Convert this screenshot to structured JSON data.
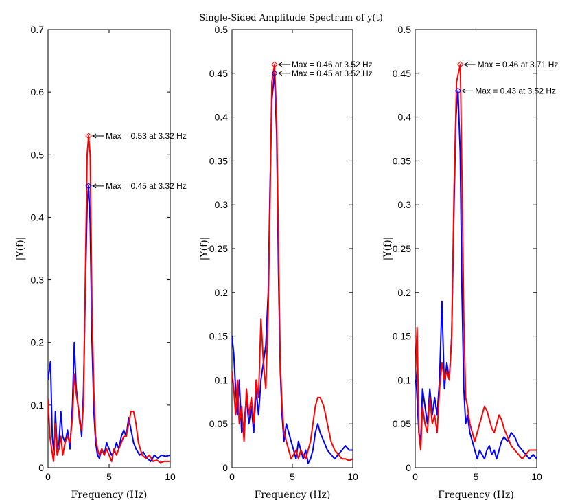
{
  "figure_title": "Single-Sided Amplitude Spectrum of y(t)",
  "chart_data": [
    {
      "type": "line",
      "xlabel": "Frequency (Hz)",
      "ylabel": "|Y(f)|",
      "xlim": [
        0,
        10
      ],
      "ylim": [
        0,
        0.7
      ],
      "xticks": [
        0,
        5,
        10
      ],
      "yticks": [
        0,
        0.1,
        0.2,
        0.3,
        0.4,
        0.5,
        0.6,
        0.7
      ],
      "series": [
        {
          "color": "#0000ff",
          "x": [
            0,
            0.2,
            0.35,
            0.5,
            0.6,
            0.75,
            0.9,
            1.05,
            1.2,
            1.4,
            1.6,
            1.8,
            2.0,
            2.15,
            2.3,
            2.45,
            2.6,
            2.75,
            2.9,
            3.05,
            3.2,
            3.32,
            3.45,
            3.6,
            3.75,
            3.9,
            4.05,
            4.2,
            4.4,
            4.6,
            4.8,
            5.0,
            5.2,
            5.4,
            5.6,
            5.8,
            6.0,
            6.2,
            6.4,
            6.6,
            6.8,
            7.0,
            7.2,
            7.5,
            7.8,
            8.1,
            8.4,
            8.7,
            9.0,
            9.3,
            9.6,
            10
          ],
          "y": [
            0.14,
            0.17,
            0.05,
            0.02,
            0.09,
            0.03,
            0.04,
            0.09,
            0.05,
            0.04,
            0.06,
            0.03,
            0.1,
            0.2,
            0.13,
            0.1,
            0.08,
            0.05,
            0.12,
            0.28,
            0.42,
            0.45,
            0.39,
            0.2,
            0.09,
            0.04,
            0.02,
            0.015,
            0.03,
            0.02,
            0.04,
            0.03,
            0.02,
            0.025,
            0.04,
            0.03,
            0.05,
            0.06,
            0.05,
            0.08,
            0.06,
            0.04,
            0.03,
            0.02,
            0.025,
            0.015,
            0.01,
            0.02,
            0.015,
            0.02,
            0.018,
            0.02
          ]
        },
        {
          "color": "#ff0000",
          "x": [
            0,
            0.15,
            0.3,
            0.45,
            0.6,
            0.75,
            0.9,
            1.05,
            1.2,
            1.4,
            1.6,
            1.8,
            2.0,
            2.15,
            2.3,
            2.45,
            2.6,
            2.75,
            2.9,
            3.05,
            3.2,
            3.32,
            3.45,
            3.6,
            3.75,
            3.9,
            4.05,
            4.2,
            4.4,
            4.6,
            4.8,
            5.0,
            5.2,
            5.4,
            5.6,
            5.8,
            6.0,
            6.2,
            6.4,
            6.6,
            6.8,
            7.0,
            7.2,
            7.4,
            7.7,
            8.0,
            8.3,
            8.6,
            8.9,
            9.2,
            9.5,
            10
          ],
          "y": [
            0.11,
            0.05,
            0.03,
            0.01,
            0.07,
            0.02,
            0.03,
            0.05,
            0.02,
            0.04,
            0.05,
            0.04,
            0.08,
            0.15,
            0.12,
            0.1,
            0.07,
            0.06,
            0.1,
            0.3,
            0.5,
            0.53,
            0.5,
            0.25,
            0.12,
            0.05,
            0.03,
            0.02,
            0.03,
            0.02,
            0.03,
            0.02,
            0.01,
            0.03,
            0.02,
            0.03,
            0.04,
            0.05,
            0.05,
            0.07,
            0.09,
            0.09,
            0.07,
            0.04,
            0.02,
            0.015,
            0.02,
            0.01,
            0.012,
            0.008,
            0.01,
            0.01
          ]
        }
      ],
      "annotations": [
        {
          "x": 3.32,
          "y": 0.53,
          "text": "Max = 0.53 at 3.32 Hz",
          "color": "#ff0000"
        },
        {
          "x": 3.32,
          "y": 0.45,
          "text": "Max = 0.45 at 3.32 Hz",
          "color": "#0000ff"
        }
      ]
    },
    {
      "type": "line",
      "xlabel": "Frequency (Hz)",
      "ylabel": "|Y(f)|",
      "xlim": [
        0,
        10
      ],
      "ylim": [
        0,
        0.5
      ],
      "xticks": [
        0,
        5,
        10
      ],
      "yticks": [
        0,
        0.05,
        0.1,
        0.15,
        0.2,
        0.25,
        0.3,
        0.35,
        0.4,
        0.45,
        0.5
      ],
      "series": [
        {
          "color": "#0000ff",
          "x": [
            0,
            0.15,
            0.3,
            0.45,
            0.6,
            0.8,
            1.0,
            1.2,
            1.4,
            1.6,
            1.8,
            2.0,
            2.2,
            2.4,
            2.6,
            2.8,
            3.0,
            3.15,
            3.3,
            3.52,
            3.7,
            3.85,
            4.0,
            4.15,
            4.3,
            4.5,
            4.7,
            4.9,
            5.1,
            5.3,
            5.5,
            5.7,
            5.9,
            6.1,
            6.3,
            6.5,
            6.7,
            6.9,
            7.1,
            7.3,
            7.6,
            7.9,
            8.2,
            8.5,
            8.8,
            9.1,
            9.4,
            9.7,
            10
          ],
          "y": [
            0.15,
            0.13,
            0.09,
            0.06,
            0.1,
            0.04,
            0.05,
            0.08,
            0.05,
            0.07,
            0.04,
            0.09,
            0.06,
            0.1,
            0.12,
            0.14,
            0.2,
            0.32,
            0.42,
            0.45,
            0.38,
            0.22,
            0.11,
            0.06,
            0.03,
            0.05,
            0.04,
            0.03,
            0.02,
            0.01,
            0.03,
            0.02,
            0.01,
            0.02,
            0.005,
            0.01,
            0.02,
            0.04,
            0.05,
            0.04,
            0.03,
            0.02,
            0.015,
            0.01,
            0.015,
            0.02,
            0.025,
            0.02,
            0.02
          ]
        },
        {
          "color": "#ff0000",
          "x": [
            0,
            0.15,
            0.3,
            0.45,
            0.6,
            0.8,
            1.0,
            1.2,
            1.4,
            1.6,
            1.8,
            2.0,
            2.2,
            2.4,
            2.6,
            2.8,
            3.0,
            3.15,
            3.3,
            3.52,
            3.7,
            3.85,
            4.0,
            4.15,
            4.3,
            4.5,
            4.7,
            4.9,
            5.1,
            5.3,
            5.5,
            5.7,
            5.9,
            6.1,
            6.3,
            6.5,
            6.7,
            6.9,
            7.1,
            7.3,
            7.6,
            7.9,
            8.2,
            8.5,
            8.8,
            9.1,
            9.4,
            9.7,
            10
          ],
          "y": [
            0.11,
            0.09,
            0.06,
            0.1,
            0.05,
            0.07,
            0.03,
            0.09,
            0.06,
            0.08,
            0.05,
            0.1,
            0.08,
            0.17,
            0.12,
            0.09,
            0.18,
            0.3,
            0.44,
            0.46,
            0.4,
            0.25,
            0.12,
            0.07,
            0.04,
            0.03,
            0.02,
            0.01,
            0.015,
            0.02,
            0.01,
            0.02,
            0.015,
            0.01,
            0.02,
            0.03,
            0.05,
            0.07,
            0.08,
            0.08,
            0.07,
            0.05,
            0.03,
            0.02,
            0.015,
            0.01,
            0.01,
            0.008,
            0.01
          ]
        }
      ],
      "annotations": [
        {
          "x": 3.52,
          "y": 0.46,
          "text": "Max = 0.46 at 3.52 Hz",
          "color": "#ff0000"
        },
        {
          "x": 3.52,
          "y": 0.45,
          "text": "Max = 0.45 at 3.52 Hz",
          "color": "#0000ff"
        }
      ]
    },
    {
      "type": "line",
      "xlabel": "Frequency (Hz)",
      "ylabel": "|Y(f)|",
      "xlim": [
        0,
        10
      ],
      "ylim": [
        0,
        0.5
      ],
      "xticks": [
        0,
        5,
        10
      ],
      "yticks": [
        0,
        0.05,
        0.1,
        0.15,
        0.2,
        0.25,
        0.3,
        0.35,
        0.4,
        0.45,
        0.5
      ],
      "series": [
        {
          "color": "#0000ff",
          "x": [
            0,
            0.15,
            0.3,
            0.45,
            0.6,
            0.8,
            1.0,
            1.2,
            1.4,
            1.6,
            1.8,
            2.0,
            2.2,
            2.4,
            2.6,
            2.8,
            3.0,
            3.2,
            3.35,
            3.52,
            3.7,
            3.85,
            4.0,
            4.15,
            4.3,
            4.5,
            4.7,
            4.9,
            5.1,
            5.3,
            5.5,
            5.7,
            5.9,
            6.1,
            6.3,
            6.5,
            6.7,
            6.9,
            7.1,
            7.3,
            7.6,
            7.9,
            8.2,
            8.5,
            8.8,
            9.1,
            9.4,
            9.7,
            10
          ],
          "y": [
            0.12,
            0.08,
            0.04,
            0.03,
            0.09,
            0.07,
            0.05,
            0.09,
            0.06,
            0.08,
            0.06,
            0.1,
            0.19,
            0.09,
            0.12,
            0.1,
            0.15,
            0.3,
            0.4,
            0.43,
            0.36,
            0.2,
            0.09,
            0.05,
            0.06,
            0.04,
            0.03,
            0.02,
            0.01,
            0.02,
            0.015,
            0.01,
            0.02,
            0.025,
            0.015,
            0.02,
            0.01,
            0.02,
            0.03,
            0.035,
            0.03,
            0.04,
            0.035,
            0.025,
            0.02,
            0.015,
            0.01,
            0.015,
            0.01
          ]
        },
        {
          "color": "#ff0000",
          "x": [
            0,
            0.15,
            0.3,
            0.45,
            0.6,
            0.8,
            1.0,
            1.2,
            1.4,
            1.6,
            1.8,
            2.0,
            2.2,
            2.4,
            2.6,
            2.8,
            3.0,
            3.2,
            3.4,
            3.55,
            3.71,
            3.85,
            4.0,
            4.15,
            4.3,
            4.5,
            4.7,
            4.9,
            5.1,
            5.3,
            5.5,
            5.7,
            5.9,
            6.1,
            6.3,
            6.5,
            6.7,
            6.9,
            7.1,
            7.3,
            7.6,
            7.9,
            8.2,
            8.5,
            8.8,
            9.1,
            9.4,
            9.7,
            10
          ],
          "y": [
            0.1,
            0.16,
            0.04,
            0.02,
            0.07,
            0.05,
            0.04,
            0.08,
            0.05,
            0.06,
            0.04,
            0.09,
            0.12,
            0.1,
            0.11,
            0.1,
            0.15,
            0.32,
            0.44,
            0.45,
            0.46,
            0.33,
            0.17,
            0.08,
            0.07,
            0.05,
            0.04,
            0.03,
            0.04,
            0.05,
            0.06,
            0.07,
            0.065,
            0.055,
            0.045,
            0.04,
            0.05,
            0.06,
            0.055,
            0.045,
            0.035,
            0.025,
            0.02,
            0.015,
            0.01,
            0.015,
            0.02,
            0.02,
            0.02
          ]
        }
      ],
      "annotations": [
        {
          "x": 3.71,
          "y": 0.46,
          "text": "Max = 0.46 at 3.71 Hz",
          "color": "#ff0000"
        },
        {
          "x": 3.52,
          "y": 0.43,
          "text": "Max = 0.43 at 3.52 Hz",
          "color": "#0000ff"
        }
      ]
    }
  ]
}
